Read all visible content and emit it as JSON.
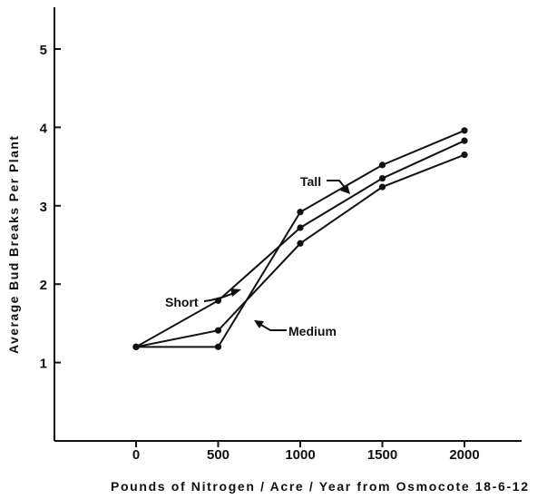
{
  "chart_data": {
    "type": "line",
    "xlabel": "Pounds of Nitrogen / Acre / Year from Osmocote 18-6-12",
    "ylabel": "Average Bud Breaks Per Plant",
    "xlim": [
      -500,
      2500
    ],
    "ylim": [
      0,
      5.5
    ],
    "x_ticks": [
      0,
      500,
      1000,
      1500,
      2000
    ],
    "x_tick_labels": [
      "0",
      "500",
      "1000",
      "1500",
      "2000"
    ],
    "y_ticks": [
      1,
      2,
      3,
      4,
      5
    ],
    "y_tick_labels": [
      "1",
      "2",
      "3",
      "4",
      "5"
    ],
    "grid": false,
    "x": [
      0,
      500,
      1000,
      1500,
      2000
    ],
    "series": [
      {
        "name": "Tall",
        "values": [
          1.2,
          1.2,
          2.92,
          3.52,
          3.96
        ]
      },
      {
        "name": "Short",
        "values": [
          1.2,
          1.79,
          2.72,
          3.35,
          3.83
        ]
      },
      {
        "name": "Medium",
        "values": [
          1.2,
          1.41,
          2.52,
          3.24,
          3.65
        ]
      }
    ]
  }
}
